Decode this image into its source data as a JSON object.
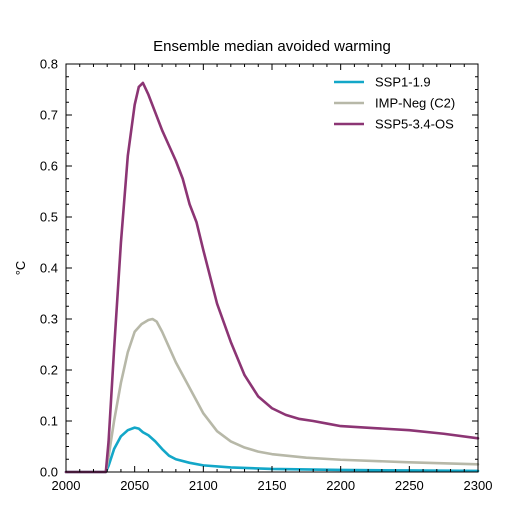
{
  "chart_data": {
    "type": "line",
    "title": "Ensemble median avoided warming",
    "xlabel": "",
    "ylabel": "°C",
    "xlim": [
      2000,
      2300
    ],
    "ylim": [
      0,
      0.8
    ],
    "x_ticks": [
      2000,
      2050,
      2100,
      2150,
      2200,
      2250,
      2300
    ],
    "y_ticks": [
      0.0,
      0.1,
      0.2,
      0.3,
      0.4,
      0.5,
      0.6,
      0.7,
      0.8
    ],
    "x_tick_labels": [
      "2000",
      "2050",
      "2100",
      "2150",
      "2200",
      "2250",
      "2300"
    ],
    "y_tick_labels": [
      "0.0",
      "0.1",
      "0.2",
      "0.3",
      "0.4",
      "0.5",
      "0.6",
      "0.7",
      "0.8"
    ],
    "grid": false,
    "legend_position": "top-right",
    "series": [
      {
        "name": "SSP1-1.9",
        "color": "#13a7c8",
        "x": [
          2000,
          2029,
          2031,
          2035,
          2040,
          2045,
          2050,
          2053,
          2056,
          2060,
          2065,
          2070,
          2075,
          2080,
          2090,
          2100,
          2120,
          2150,
          2200,
          2250,
          2300
        ],
        "y": [
          0.0,
          0.0,
          0.012,
          0.045,
          0.07,
          0.082,
          0.087,
          0.085,
          0.078,
          0.072,
          0.06,
          0.045,
          0.032,
          0.025,
          0.018,
          0.013,
          0.009,
          0.006,
          0.004,
          0.003,
          0.002
        ]
      },
      {
        "name": "IMP-Neg (C2)",
        "color": "#b7b8a8",
        "x": [
          2000,
          2029,
          2031,
          2035,
          2040,
          2045,
          2050,
          2055,
          2060,
          2063,
          2066,
          2070,
          2075,
          2080,
          2085,
          2090,
          2095,
          2100,
          2110,
          2120,
          2130,
          2140,
          2150,
          2175,
          2200,
          2250,
          2300
        ],
        "y": [
          0.0,
          0.0,
          0.03,
          0.1,
          0.175,
          0.235,
          0.275,
          0.29,
          0.298,
          0.3,
          0.295,
          0.275,
          0.245,
          0.215,
          0.19,
          0.165,
          0.14,
          0.115,
          0.08,
          0.06,
          0.048,
          0.04,
          0.035,
          0.028,
          0.024,
          0.019,
          0.015
        ]
      },
      {
        "name": "SSP5-3.4-OS",
        "color": "#8c3574",
        "x": [
          2000,
          2029,
          2031,
          2035,
          2040,
          2045,
          2050,
          2053,
          2056,
          2060,
          2065,
          2070,
          2075,
          2080,
          2085,
          2090,
          2095,
          2100,
          2110,
          2120,
          2130,
          2140,
          2150,
          2160,
          2170,
          2180,
          2190,
          2200,
          2225,
          2250,
          2275,
          2300
        ],
        "y": [
          0.0,
          0.0,
          0.06,
          0.24,
          0.45,
          0.62,
          0.72,
          0.755,
          0.763,
          0.74,
          0.705,
          0.67,
          0.64,
          0.61,
          0.575,
          0.525,
          0.49,
          0.435,
          0.33,
          0.255,
          0.19,
          0.148,
          0.125,
          0.112,
          0.104,
          0.1,
          0.095,
          0.09,
          0.086,
          0.082,
          0.075,
          0.066
        ]
      }
    ]
  }
}
